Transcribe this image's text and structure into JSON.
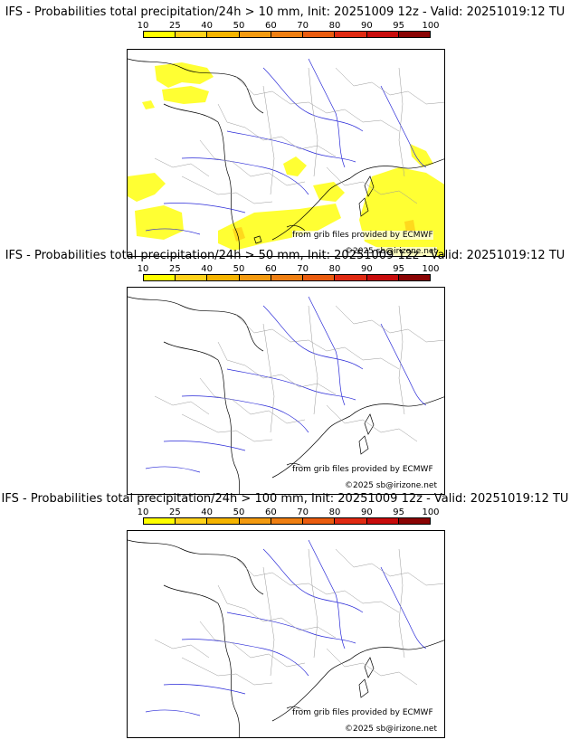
{
  "colorbar": {
    "ticks": [
      "10",
      "25",
      "40",
      "50",
      "60",
      "70",
      "80",
      "90",
      "95",
      "100"
    ],
    "colors": [
      "#ffff00",
      "#ffd21a",
      "#f5b400",
      "#f39a10",
      "#ef7f12",
      "#ea5c0f",
      "#e02a12",
      "#c80c0c",
      "#8a0404",
      "#5a0000"
    ]
  },
  "panels": [
    {
      "title": "IFS - Probabilities total precipitation/24h > 10 mm, Init: 20251009 12z - Valid: 20251019:12 TU",
      "credit": "from grib files provided by ECMWF",
      "copyright": "©2025 sb@irizone.net"
    },
    {
      "title": "IFS - Probabilities total precipitation/24h > 50 mm, Init: 20251009 12z - Valid: 20251019:12 TU",
      "credit": "from grib files provided by ECMWF",
      "copyright": "©2025 sb@irizone.net"
    },
    {
      "title": "IFS - Probabilities total precipitation/24h > 100 mm, Init: 20251009 12z - Valid: 20251019:12 TU",
      "credit": "from grib files provided by ECMWF",
      "copyright": "©2025 sb@irizone.net"
    }
  ]
}
